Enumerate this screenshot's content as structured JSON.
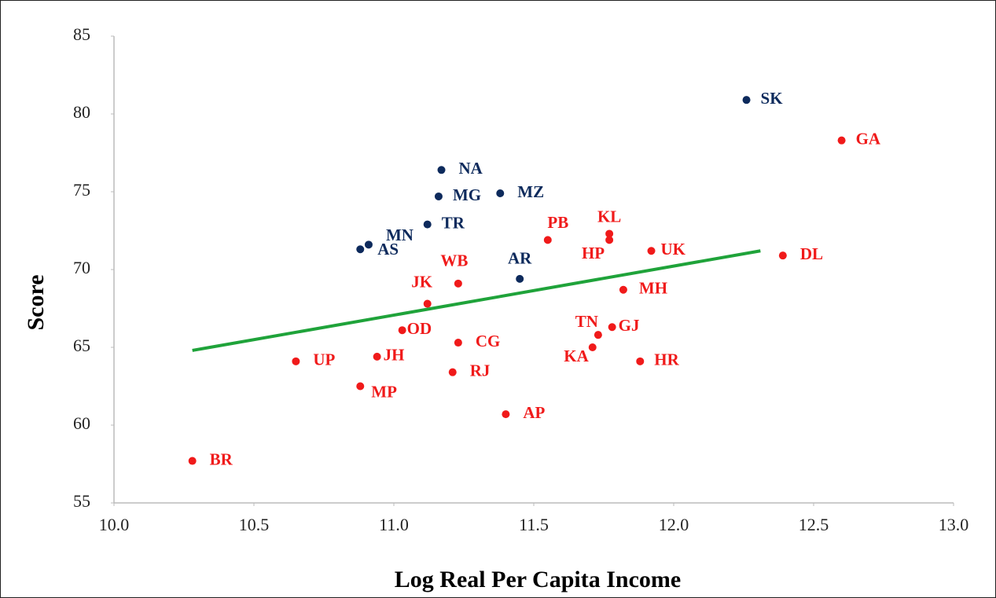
{
  "chart_data": {
    "type": "scatter",
    "x_label": "Log Real Per Capita Income",
    "y_label": "Score",
    "xlim": [
      10,
      13
    ],
    "ylim": [
      55,
      85
    ],
    "xticks": [
      {
        "value": 10,
        "label": "10.0"
      },
      {
        "value": 10.5,
        "label": "10.5"
      },
      {
        "value": 11,
        "label": "11.0"
      },
      {
        "value": 11.5,
        "label": "11.5"
      },
      {
        "value": 12,
        "label": "12.0"
      },
      {
        "value": 12.5,
        "label": "12.5"
      },
      {
        "value": 13,
        "label": "13.0"
      }
    ],
    "yticks": [
      55,
      60,
      65,
      70,
      75,
      80,
      85
    ],
    "series": [
      {
        "color": "#0d2a5c",
        "labels": [
          "SK",
          "NA",
          "MG",
          "MZ",
          "TR",
          "MN",
          "AS",
          "AR"
        ],
        "x": [
          12.26,
          11.17,
          11.16,
          11.38,
          11.12,
          10.91,
          10.88,
          11.45
        ],
        "y": [
          80.9,
          76.4,
          74.7,
          74.9,
          72.9,
          71.6,
          71.3,
          69.4
        ]
      },
      {
        "color": "#f01a1a",
        "labels": [
          "GA",
          "PB",
          "KL",
          "HP",
          "UK",
          "DL",
          "WB",
          "JK",
          "MH",
          "OD",
          "CG",
          "TN",
          "GJ",
          "KA",
          "UP",
          "JH",
          "HR",
          "RJ",
          "MP",
          "AP",
          "BR"
        ],
        "x": [
          12.6,
          11.55,
          11.77,
          11.77,
          11.92,
          12.39,
          11.23,
          11.12,
          11.82,
          11.03,
          11.23,
          11.73,
          11.78,
          11.71,
          10.65,
          10.94,
          11.88,
          11.21,
          10.88,
          11.4,
          10.28
        ],
        "y": [
          78.3,
          71.9,
          72.3,
          71.9,
          71.2,
          70.9,
          69.1,
          67.8,
          68.7,
          66.1,
          65.3,
          65.8,
          66.3,
          65.0,
          64.1,
          64.4,
          64.1,
          63.4,
          62.5,
          60.7,
          57.7
        ]
      }
    ],
    "trendline": {
      "color": "#1fa33a",
      "x": [
        10.28,
        12.31
      ],
      "y": [
        64.8,
        71.2
      ]
    }
  }
}
